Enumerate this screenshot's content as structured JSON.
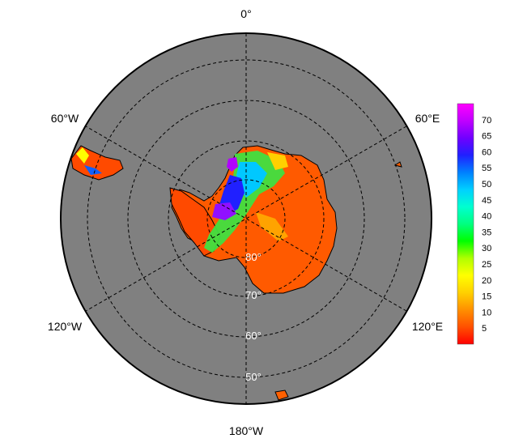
{
  "map": {
    "projection": "south-polar-stereographic",
    "ocean_color": "#808080",
    "background_color": "#ffffff",
    "longitude_labels": [
      "0°",
      "60°E",
      "120°E",
      "180°W",
      "120°W",
      "60°W"
    ],
    "latitude_labels": [
      "80°",
      "70°",
      "60°",
      "50°"
    ]
  },
  "colorbar": {
    "ticks": [
      "70",
      "65",
      "60",
      "55",
      "50",
      "45",
      "40",
      "35",
      "30",
      "25",
      "20",
      "15",
      "10",
      "5"
    ],
    "range": [
      0,
      75
    ],
    "colors": [
      "#ff0000",
      "#ff5000",
      "#ff9000",
      "#ffd000",
      "#ffff00",
      "#b0ff00",
      "#00ff00",
      "#00ff80",
      "#00ffd0",
      "#00d0ff",
      "#0080ff",
      "#2020ff",
      "#7000ff",
      "#c000ff",
      "#ff00ff"
    ]
  }
}
